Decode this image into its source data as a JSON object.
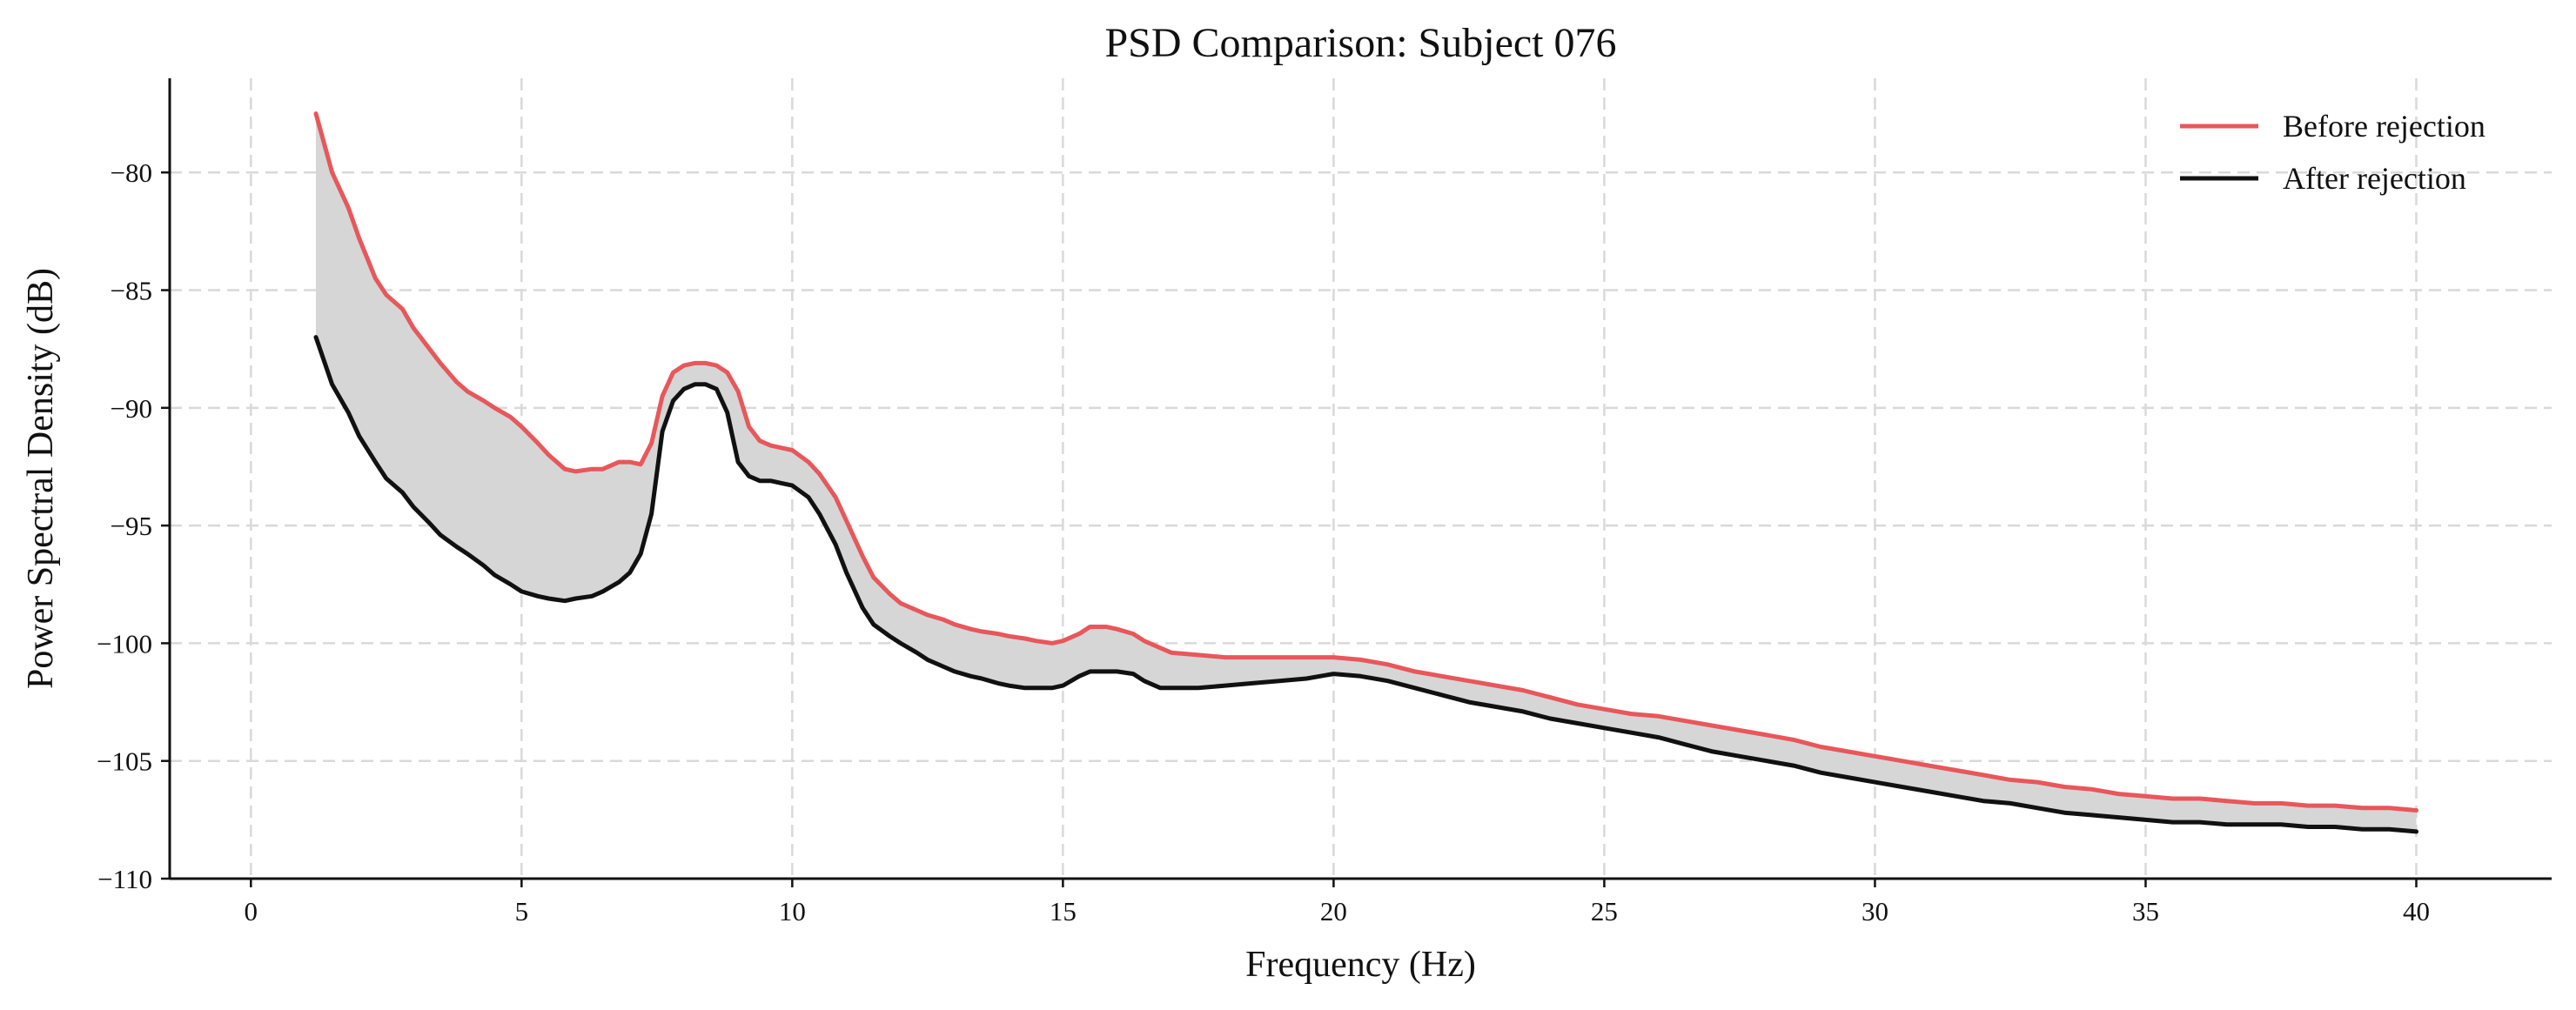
{
  "chart_data": {
    "type": "line",
    "title": "PSD Comparison: Subject 076",
    "xlabel": "Frequency (Hz)",
    "ylabel": "Power Spectral Density (dB)",
    "xlim": [
      -1.5,
      42.5
    ],
    "ylim": [
      -110,
      -76
    ],
    "xticks": [
      0,
      5,
      10,
      15,
      20,
      25,
      30,
      35,
      40
    ],
    "yticks": [
      -110,
      -105,
      -100,
      -95,
      -90,
      -85,
      -80
    ],
    "xtick_labels": [
      "0",
      "5",
      "10",
      "15",
      "20",
      "25",
      "30",
      "35",
      "40"
    ],
    "ytick_labels": [
      "−110",
      "−105",
      "−100",
      "−95",
      "−90",
      "−85",
      "−80"
    ],
    "grid": true,
    "legend_position": "top-right",
    "fill_between": true,
    "fill_color": "#d6d6d6",
    "series": [
      {
        "name": "Before rejection",
        "color": "#e8575a",
        "x": [
          1.2,
          1.5,
          1.8,
          2.0,
          2.3,
          2.5,
          2.8,
          3.0,
          3.3,
          3.5,
          3.8,
          4.0,
          4.3,
          4.5,
          4.8,
          5.0,
          5.3,
          5.5,
          5.8,
          6.0,
          6.3,
          6.5,
          6.8,
          7.0,
          7.2,
          7.4,
          7.6,
          7.8,
          8.0,
          8.2,
          8.4,
          8.6,
          8.8,
          9.0,
          9.2,
          9.4,
          9.6,
          9.8,
          10.0,
          10.3,
          10.5,
          10.8,
          11.0,
          11.3,
          11.5,
          11.8,
          12.0,
          12.3,
          12.5,
          12.8,
          13.0,
          13.3,
          13.5,
          13.8,
          14.0,
          14.3,
          14.5,
          14.8,
          15.0,
          15.3,
          15.5,
          15.8,
          16.0,
          16.3,
          16.5,
          16.8,
          17.0,
          17.5,
          18.0,
          18.5,
          19.0,
          19.5,
          20.0,
          20.5,
          21.0,
          21.5,
          22.0,
          22.5,
          23.0,
          23.5,
          24.0,
          24.5,
          25.0,
          25.5,
          26.0,
          26.5,
          27.0,
          27.5,
          28.0,
          28.5,
          29.0,
          29.5,
          30.0,
          30.5,
          31.0,
          31.5,
          32.0,
          32.5,
          33.0,
          33.5,
          34.0,
          34.5,
          35.0,
          35.5,
          36.0,
          36.5,
          37.0,
          37.5,
          38.0,
          38.5,
          39.0,
          39.5,
          40.0
        ],
        "values": [
          -77.5,
          -80.0,
          -81.5,
          -82.8,
          -84.5,
          -85.2,
          -85.8,
          -86.6,
          -87.5,
          -88.1,
          -88.9,
          -89.3,
          -89.7,
          -90.0,
          -90.4,
          -90.8,
          -91.5,
          -92.0,
          -92.6,
          -92.7,
          -92.6,
          -92.6,
          -92.3,
          -92.3,
          -92.4,
          -91.5,
          -89.5,
          -88.5,
          -88.2,
          -88.1,
          -88.1,
          -88.2,
          -88.5,
          -89.3,
          -90.8,
          -91.4,
          -91.6,
          -91.7,
          -91.8,
          -92.3,
          -92.8,
          -93.8,
          -94.8,
          -96.3,
          -97.2,
          -97.9,
          -98.3,
          -98.6,
          -98.8,
          -99.0,
          -99.2,
          -99.4,
          -99.5,
          -99.6,
          -99.7,
          -99.8,
          -99.9,
          -100.0,
          -99.9,
          -99.6,
          -99.3,
          -99.3,
          -99.4,
          -99.6,
          -99.9,
          -100.2,
          -100.4,
          -100.5,
          -100.6,
          -100.6,
          -100.6,
          -100.6,
          -100.6,
          -100.7,
          -100.9,
          -101.2,
          -101.4,
          -101.6,
          -101.8,
          -102.0,
          -102.3,
          -102.6,
          -102.8,
          -103.0,
          -103.1,
          -103.3,
          -103.5,
          -103.7,
          -103.9,
          -104.1,
          -104.4,
          -104.6,
          -104.8,
          -105.0,
          -105.2,
          -105.4,
          -105.6,
          -105.8,
          -105.9,
          -106.1,
          -106.2,
          -106.4,
          -106.5,
          -106.6,
          -106.6,
          -106.7,
          -106.8,
          -106.8,
          -106.9,
          -106.9,
          -107.0,
          -107.0,
          -107.1
        ]
      },
      {
        "name": "After rejection",
        "color": "#111111",
        "x": [
          1.2,
          1.5,
          1.8,
          2.0,
          2.3,
          2.5,
          2.8,
          3.0,
          3.3,
          3.5,
          3.8,
          4.0,
          4.3,
          4.5,
          4.8,
          5.0,
          5.3,
          5.5,
          5.8,
          6.0,
          6.3,
          6.5,
          6.8,
          7.0,
          7.2,
          7.4,
          7.6,
          7.8,
          8.0,
          8.2,
          8.4,
          8.6,
          8.8,
          9.0,
          9.2,
          9.4,
          9.6,
          9.8,
          10.0,
          10.3,
          10.5,
          10.8,
          11.0,
          11.3,
          11.5,
          11.8,
          12.0,
          12.3,
          12.5,
          12.8,
          13.0,
          13.3,
          13.5,
          13.8,
          14.0,
          14.3,
          14.5,
          14.8,
          15.0,
          15.3,
          15.5,
          15.8,
          16.0,
          16.3,
          16.5,
          16.8,
          17.0,
          17.5,
          18.0,
          18.5,
          19.0,
          19.5,
          20.0,
          20.5,
          21.0,
          21.5,
          22.0,
          22.5,
          23.0,
          23.5,
          24.0,
          24.5,
          25.0,
          25.5,
          26.0,
          26.5,
          27.0,
          27.5,
          28.0,
          28.5,
          29.0,
          29.5,
          30.0,
          30.5,
          31.0,
          31.5,
          32.0,
          32.5,
          33.0,
          33.5,
          34.0,
          34.5,
          35.0,
          35.5,
          36.0,
          36.5,
          37.0,
          37.5,
          38.0,
          38.5,
          39.0,
          39.5,
          40.0
        ],
        "values": [
          -87.0,
          -89.0,
          -90.2,
          -91.2,
          -92.3,
          -93.0,
          -93.6,
          -94.2,
          -94.9,
          -95.4,
          -95.9,
          -96.2,
          -96.7,
          -97.1,
          -97.5,
          -97.8,
          -98.0,
          -98.1,
          -98.2,
          -98.1,
          -98.0,
          -97.8,
          -97.4,
          -97.0,
          -96.2,
          -94.5,
          -91.0,
          -89.7,
          -89.2,
          -89.0,
          -89.0,
          -89.2,
          -90.2,
          -92.3,
          -92.9,
          -93.1,
          -93.1,
          -93.2,
          -93.3,
          -93.8,
          -94.5,
          -95.8,
          -97.0,
          -98.5,
          -99.2,
          -99.7,
          -100.0,
          -100.4,
          -100.7,
          -101.0,
          -101.2,
          -101.4,
          -101.5,
          -101.7,
          -101.8,
          -101.9,
          -101.9,
          -101.9,
          -101.8,
          -101.4,
          -101.2,
          -101.2,
          -101.2,
          -101.3,
          -101.6,
          -101.9,
          -101.9,
          -101.9,
          -101.8,
          -101.7,
          -101.6,
          -101.5,
          -101.3,
          -101.4,
          -101.6,
          -101.9,
          -102.2,
          -102.5,
          -102.7,
          -102.9,
          -103.2,
          -103.4,
          -103.6,
          -103.8,
          -104.0,
          -104.3,
          -104.6,
          -104.8,
          -105.0,
          -105.2,
          -105.5,
          -105.7,
          -105.9,
          -106.1,
          -106.3,
          -106.5,
          -106.7,
          -106.8,
          -107.0,
          -107.2,
          -107.3,
          -107.4,
          -107.5,
          -107.6,
          -107.6,
          -107.7,
          -107.7,
          -107.7,
          -107.8,
          -107.8,
          -107.9,
          -107.9,
          -108.0
        ]
      }
    ]
  }
}
